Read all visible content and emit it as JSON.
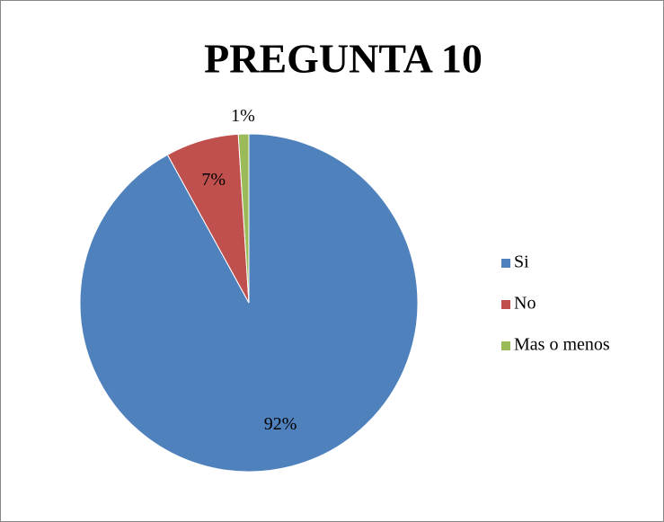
{
  "chart_data": {
    "type": "pie",
    "title": "PREGUNTA 10",
    "categories": [
      "Si",
      "No",
      "Mas o menos"
    ],
    "values": [
      92,
      7,
      1
    ],
    "value_labels": [
      "92%",
      "7%",
      "1%"
    ],
    "colors": [
      "#4f81bd",
      "#c0504d",
      "#9bbb59"
    ],
    "legend": "right"
  }
}
